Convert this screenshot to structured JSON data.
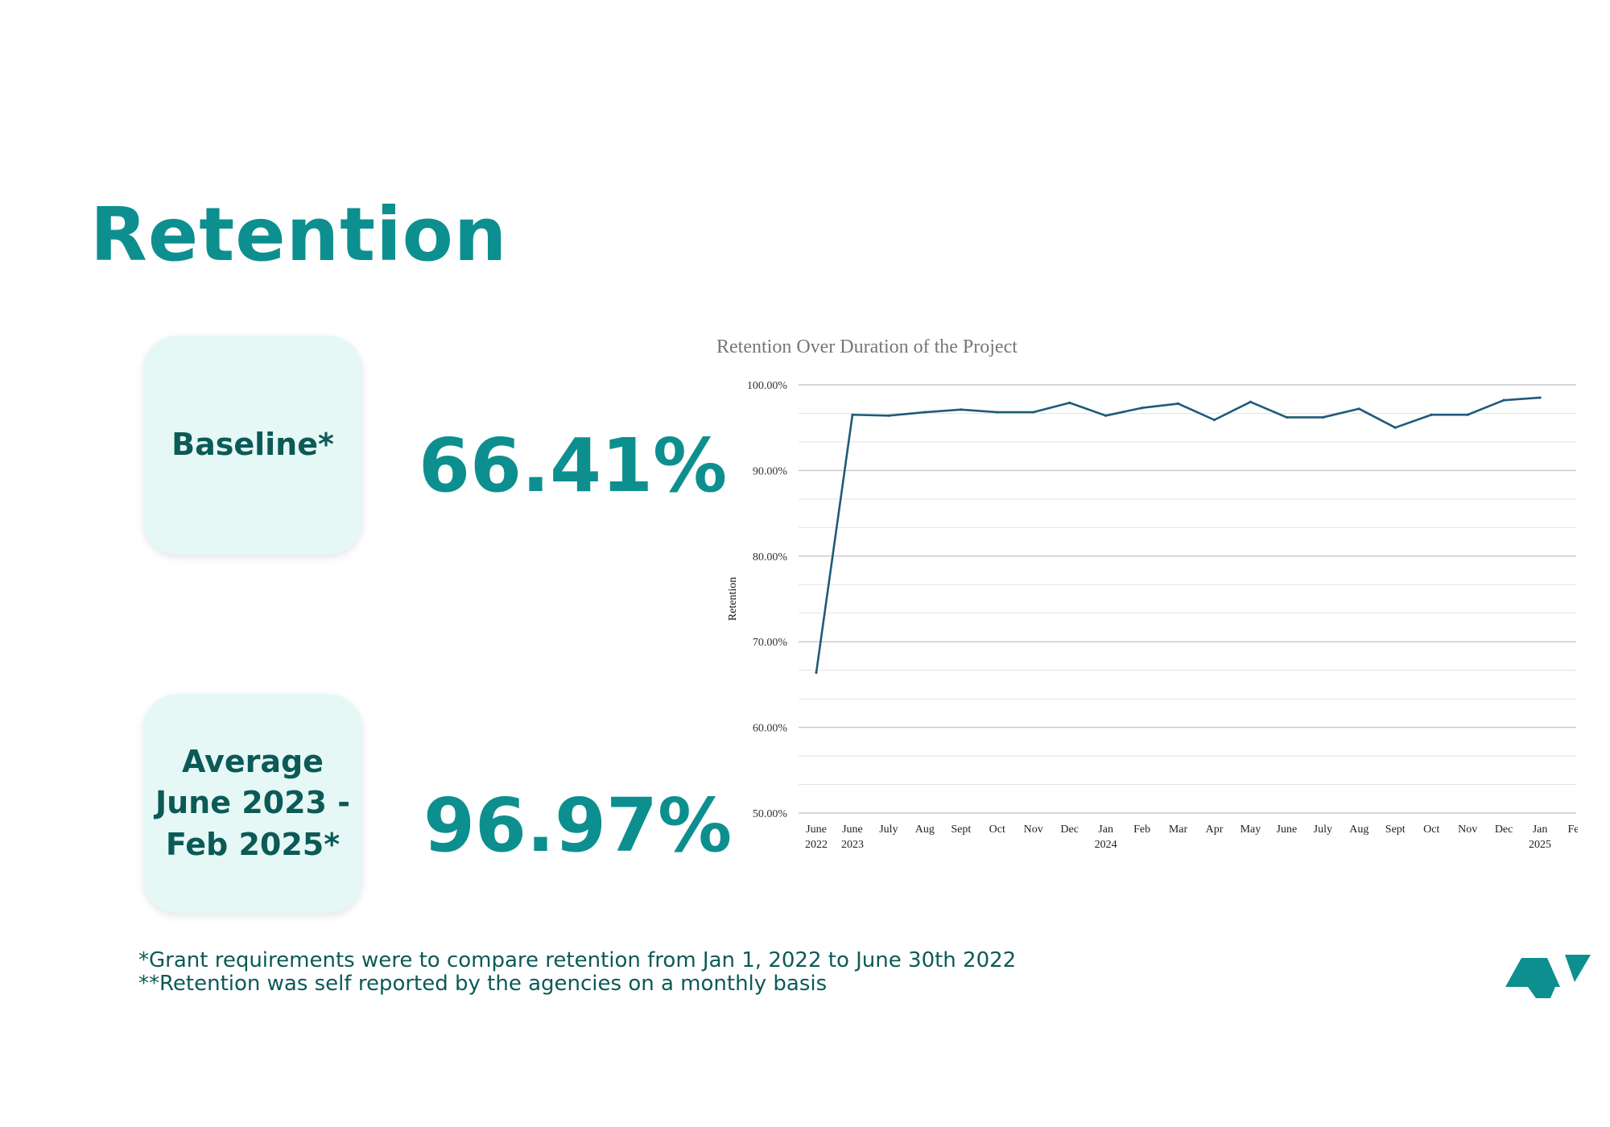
{
  "page": {
    "title": "Retention"
  },
  "kpis": [
    {
      "label": "Baseline*",
      "value": "66.41%"
    },
    {
      "label": "Average\nJune 2023 -\nFeb 2025*",
      "value": "96.97%"
    }
  ],
  "footnotes": [
    "*Grant requirements were to compare retention from Jan 1, 2022 to June 30th 2022",
    "**Retention was self reported by the agencies on a monthly basis"
  ],
  "colors": {
    "accent": "#0d8f8f",
    "dark_text": "#0b5a57",
    "card_bg": "#e6f8f6",
    "line": "#1f5a78",
    "grid": "#d9d9d9"
  },
  "chart_data": {
    "type": "line",
    "title": "Retention Over Duration of the Project",
    "xlabel": "",
    "ylabel": "Retention",
    "ylim": [
      50,
      100
    ],
    "y_ticks": [
      "100.00%",
      "90.00%",
      "80.00%",
      "70.00%",
      "60.00%",
      "50.00%"
    ],
    "grid": true,
    "legend": "none",
    "categories": [
      [
        "June",
        "2022"
      ],
      [
        "June",
        "2023"
      ],
      [
        "July"
      ],
      [
        "Aug"
      ],
      [
        "Sept"
      ],
      [
        "Oct"
      ],
      [
        "Nov"
      ],
      [
        "Dec"
      ],
      [
        "Jan",
        "2024"
      ],
      [
        "Feb"
      ],
      [
        "Mar"
      ],
      [
        "Apr"
      ],
      [
        "May"
      ],
      [
        "June"
      ],
      [
        "July"
      ],
      [
        "Aug"
      ],
      [
        "Sept"
      ],
      [
        "Oct"
      ],
      [
        "Nov"
      ],
      [
        "Dec"
      ],
      [
        "Jan",
        "2025"
      ],
      [
        "Feb"
      ]
    ],
    "series": [
      {
        "values": [
          66.4,
          96.5,
          96.4,
          96.8,
          97.1,
          96.8,
          96.8,
          97.9,
          96.4,
          97.3,
          97.8,
          95.9,
          98.0,
          96.2,
          96.2,
          97.2,
          95.0,
          96.5,
          96.5,
          98.2,
          98.5,
          null
        ]
      }
    ]
  },
  "logo": {
    "icon": "agency-logo-icon"
  }
}
